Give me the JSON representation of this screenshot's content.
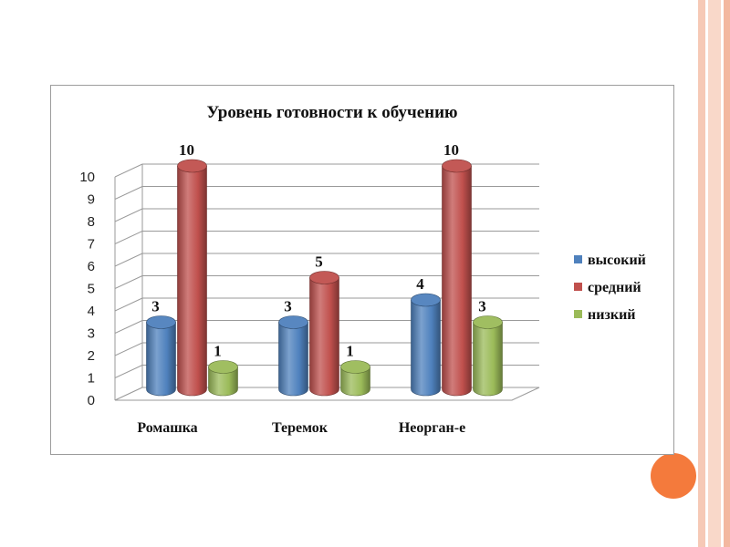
{
  "chart_data": {
    "type": "bar",
    "title": "Уровень готовности к обучению",
    "categories": [
      "Ромашка",
      "Теремок",
      "Неорган-е"
    ],
    "series": [
      {
        "name": "высокий",
        "values": [
          3,
          3,
          4
        ],
        "color": "#4f81bd"
      },
      {
        "name": "средний",
        "values": [
          10,
          5,
          10
        ],
        "color": "#c0504d"
      },
      {
        "name": "низкий",
        "values": [
          1,
          1,
          3
        ],
        "color": "#9bbb59"
      }
    ],
    "ylim": [
      0,
      10
    ],
    "yticks": [
      "0",
      "1",
      "2",
      "3",
      "4",
      "5",
      "6",
      "7",
      "8",
      "9",
      "10"
    ],
    "grid": true,
    "legend_position": "right",
    "bar_style": "3d-cylinder"
  }
}
